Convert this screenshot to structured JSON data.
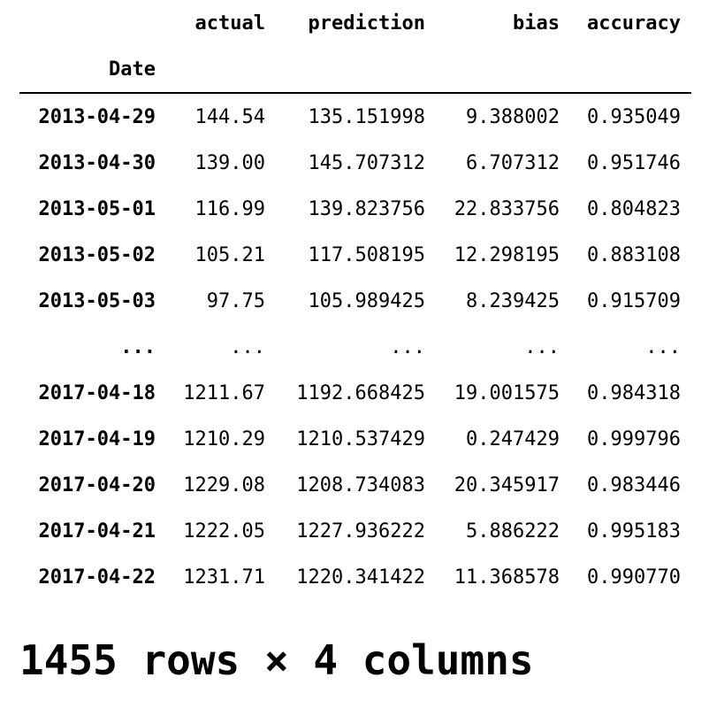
{
  "dataframe": {
    "columns": [
      "actual",
      "prediction",
      "bias",
      "accuracy"
    ],
    "index_name": "Date",
    "rows": [
      {
        "index": "2013-04-29",
        "cells": [
          "144.54",
          "135.151998",
          "9.388002",
          "0.935049"
        ]
      },
      {
        "index": "2013-04-30",
        "cells": [
          "139.00",
          "145.707312",
          "6.707312",
          "0.951746"
        ]
      },
      {
        "index": "2013-05-01",
        "cells": [
          "116.99",
          "139.823756",
          "22.833756",
          "0.804823"
        ]
      },
      {
        "index": "2013-05-02",
        "cells": [
          "105.21",
          "117.508195",
          "12.298195",
          "0.883108"
        ]
      },
      {
        "index": "2013-05-03",
        "cells": [
          "97.75",
          "105.989425",
          "8.239425",
          "0.915709"
        ]
      },
      {
        "index": "...",
        "cells": [
          "...",
          "...",
          "...",
          "..."
        ]
      },
      {
        "index": "2017-04-18",
        "cells": [
          "1211.67",
          "1192.668425",
          "19.001575",
          "0.984318"
        ]
      },
      {
        "index": "2017-04-19",
        "cells": [
          "1210.29",
          "1210.537429",
          "0.247429",
          "0.999796"
        ]
      },
      {
        "index": "2017-04-20",
        "cells": [
          "1229.08",
          "1208.734083",
          "20.345917",
          "0.983446"
        ]
      },
      {
        "index": "2017-04-21",
        "cells": [
          "1222.05",
          "1227.936222",
          "5.886222",
          "0.995183"
        ]
      },
      {
        "index": "2017-04-22",
        "cells": [
          "1231.71",
          "1220.341422",
          "11.368578",
          "0.990770"
        ]
      }
    ],
    "shape_text": "1455 rows × 4 columns"
  }
}
